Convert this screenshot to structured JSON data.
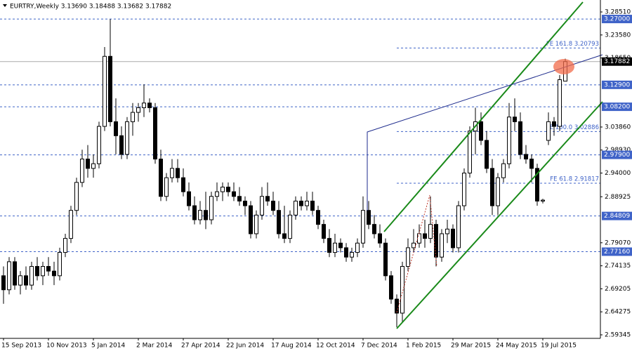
{
  "chart_data": {
    "type": "candlestick",
    "title": "EURTRY,Weekly  3.13690 3.18488 3.13682 3.17882",
    "categories": [
      "15 Sep 2013",
      null,
      null,
      null,
      null,
      null,
      null,
      null,
      "10 Nov 2013",
      null,
      null,
      null,
      null,
      null,
      null,
      null,
      "5 Jan 2014",
      null,
      null,
      null,
      null,
      null,
      null,
      null,
      "2 Mar 2014",
      null,
      null,
      null,
      null,
      null,
      null,
      null,
      "27 Apr 2014",
      null,
      null,
      null,
      null,
      null,
      null,
      null,
      "22 Jun 2014",
      null,
      null,
      null,
      null,
      null,
      null,
      null,
      "17 Aug 2014",
      null,
      null,
      null,
      null,
      null,
      null,
      null,
      "12 Oct 2014",
      null,
      null,
      null,
      null,
      null,
      null,
      null,
      "7 Dec 2014",
      null,
      null,
      null,
      null,
      null,
      null,
      null,
      "1 Feb 2015",
      null,
      null,
      null,
      null,
      null,
      null,
      null,
      "29 Mar 2015",
      null,
      null,
      null,
      null,
      null,
      null,
      null,
      "24 May 2015",
      null,
      null,
      null,
      null,
      null,
      null,
      null,
      "19 Jul 2015",
      null,
      null,
      null,
      null
    ],
    "open": [
      2.72,
      2.69,
      2.75,
      2.7,
      2.72,
      2.7,
      2.74,
      2.72,
      2.74,
      2.73,
      2.72,
      2.77,
      2.8,
      2.86,
      2.92,
      2.97,
      2.95,
      2.96,
      3.04,
      3.19,
      3.05,
      3.02,
      2.98,
      3.05,
      3.07,
      3.08,
      3.09,
      3.08,
      2.97,
      2.89,
      2.93,
      2.95,
      2.93,
      2.9,
      2.87,
      2.84,
      2.86,
      2.84,
      2.89,
      2.9,
      2.91,
      2.9,
      2.89,
      2.88,
      2.87,
      2.81,
      2.85,
      2.89,
      2.88,
      2.86,
      2.81,
      2.8,
      2.85,
      2.88,
      2.87,
      2.88,
      2.86,
      2.83,
      2.8,
      2.77,
      2.79,
      2.78,
      2.76,
      2.77,
      2.79,
      2.86,
      2.83,
      2.81,
      2.79,
      2.72,
      2.67,
      2.64,
      2.74,
      2.78,
      2.79,
      2.81,
      2.8,
      2.83,
      2.76,
      2.81,
      2.82,
      2.78,
      2.87,
      2.94,
      3.03,
      3.05,
      3.01,
      2.95,
      2.87,
      2.93,
      2.96,
      3.06,
      3.05,
      2.98,
      2.97,
      2.95,
      2.88,
      3.01,
      3.05,
      3.04,
      3.1369
    ],
    "high": [
      2.74,
      2.76,
      2.76,
      2.73,
      2.74,
      2.75,
      2.76,
      2.75,
      2.76,
      2.75,
      2.78,
      2.81,
      2.87,
      2.93,
      2.99,
      3.0,
      2.98,
      3.05,
      3.21,
      3.27,
      3.1,
      3.04,
      3.06,
      3.09,
      3.09,
      3.13,
      3.1,
      3.09,
      2.99,
      2.94,
      2.97,
      2.97,
      2.95,
      2.92,
      2.89,
      2.88,
      2.9,
      2.9,
      2.92,
      2.92,
      2.92,
      2.92,
      2.91,
      2.89,
      2.88,
      2.86,
      2.91,
      2.92,
      2.9,
      2.88,
      2.87,
      2.86,
      2.89,
      2.89,
      2.9,
      2.9,
      2.87,
      2.84,
      2.82,
      2.81,
      2.8,
      2.79,
      2.78,
      2.8,
      2.89,
      2.88,
      2.85,
      2.83,
      2.8,
      2.73,
      2.68,
      2.75,
      2.8,
      2.82,
      2.83,
      2.84,
      2.89,
      2.84,
      2.82,
      2.84,
      2.83,
      2.88,
      2.95,
      3.04,
      3.08,
      3.07,
      3.03,
      2.97,
      2.94,
      2.97,
      3.09,
      3.1,
      3.07,
      3.0,
      2.98,
      2.96,
      2.885,
      3.07,
      3.06,
      3.15,
      3.18488
    ],
    "low": [
      2.66,
      2.68,
      2.69,
      2.68,
      2.69,
      2.69,
      2.71,
      2.7,
      2.72,
      2.7,
      2.71,
      2.76,
      2.79,
      2.85,
      2.91,
      2.93,
      2.93,
      2.95,
      3.03,
      3.04,
      2.98,
      2.97,
      2.97,
      3.02,
      3.05,
      3.06,
      3.07,
      2.96,
      2.88,
      2.88,
      2.92,
      2.92,
      2.89,
      2.86,
      2.83,
      2.83,
      2.82,
      2.83,
      2.88,
      2.88,
      2.89,
      2.88,
      2.87,
      2.85,
      2.8,
      2.8,
      2.84,
      2.87,
      2.85,
      2.8,
      2.79,
      2.79,
      2.84,
      2.86,
      2.86,
      2.85,
      2.82,
      2.79,
      2.76,
      2.76,
      2.77,
      2.75,
      2.75,
      2.76,
      2.78,
      2.82,
      2.8,
      2.78,
      2.71,
      2.66,
      2.61,
      2.62,
      2.73,
      2.77,
      2.78,
      2.78,
      2.79,
      2.74,
      2.75,
      2.79,
      2.77,
      2.77,
      2.86,
      2.93,
      2.98,
      3.0,
      2.94,
      2.85,
      2.85,
      2.92,
      2.95,
      3.03,
      2.97,
      2.96,
      2.92,
      2.87,
      2.875,
      3.0,
      3.02,
      3.03,
      3.13682
    ],
    "close": [
      2.69,
      2.75,
      2.7,
      2.72,
      2.7,
      2.74,
      2.72,
      2.74,
      2.73,
      2.72,
      2.77,
      2.8,
      2.86,
      2.92,
      2.97,
      2.95,
      2.96,
      3.04,
      3.19,
      3.05,
      3.02,
      2.98,
      3.05,
      3.07,
      3.08,
      3.09,
      3.08,
      2.97,
      2.89,
      2.93,
      2.95,
      2.93,
      2.9,
      2.87,
      2.84,
      2.86,
      2.84,
      2.89,
      2.9,
      2.91,
      2.9,
      2.89,
      2.88,
      2.87,
      2.81,
      2.85,
      2.89,
      2.88,
      2.86,
      2.81,
      2.8,
      2.85,
      2.88,
      2.87,
      2.88,
      2.86,
      2.83,
      2.8,
      2.77,
      2.79,
      2.78,
      2.76,
      2.77,
      2.79,
      2.86,
      2.83,
      2.81,
      2.79,
      2.72,
      2.67,
      2.64,
      2.74,
      2.78,
      2.79,
      2.81,
      2.8,
      2.83,
      2.76,
      2.81,
      2.82,
      2.78,
      2.87,
      2.94,
      3.03,
      3.05,
      3.01,
      2.95,
      2.87,
      2.93,
      2.96,
      3.06,
      3.05,
      2.98,
      2.97,
      2.95,
      2.88,
      2.882,
      3.05,
      3.04,
      3.14,
      3.17882
    ],
    "up_color": "#ffffff",
    "down_color": "#000000",
    "ylim": [
      2.5859,
      3.3092
    ],
    "yticks": [
      {
        "value": 3.2851,
        "label": "3.28510"
      },
      {
        "value": 3.2358,
        "label": "3.23580"
      },
      {
        "value": 3.1865,
        "label": "3.18650"
      },
      {
        "value": 3.0386,
        "label": "3.03860"
      },
      {
        "value": 2.9893,
        "label": "2.98930"
      },
      {
        "value": 2.94,
        "label": "2.94000"
      },
      {
        "value": 2.88925,
        "label": "2.88925"
      },
      {
        "value": 2.7907,
        "label": "2.79070"
      },
      {
        "value": 2.74135,
        "label": "2.74135"
      },
      {
        "value": 2.69205,
        "label": "2.69205"
      },
      {
        "value": 2.64275,
        "label": "2.64275"
      },
      {
        "value": 2.59345,
        "label": "2.59345"
      }
    ],
    "levels": [
      {
        "value": 3.27,
        "label": "3.27000"
      },
      {
        "value": 3.129,
        "label": "3.12900"
      },
      {
        "value": 3.082,
        "label": "3.08200"
      },
      {
        "value": 2.979,
        "label": "2.97900"
      },
      {
        "value": 2.84809,
        "label": "2.84809"
      },
      {
        "value": 2.7716,
        "label": "2.77160"
      }
    ],
    "level_color": "#3f63c8",
    "fibs": [
      {
        "value": 3.20793,
        "label": "FE 161.8 3.20793"
      },
      {
        "value": 3.02886,
        "label": "FE 100.0 3.02886"
      },
      {
        "value": 2.91817,
        "label": "FE 61.8 2.91817"
      }
    ]
  }
}
